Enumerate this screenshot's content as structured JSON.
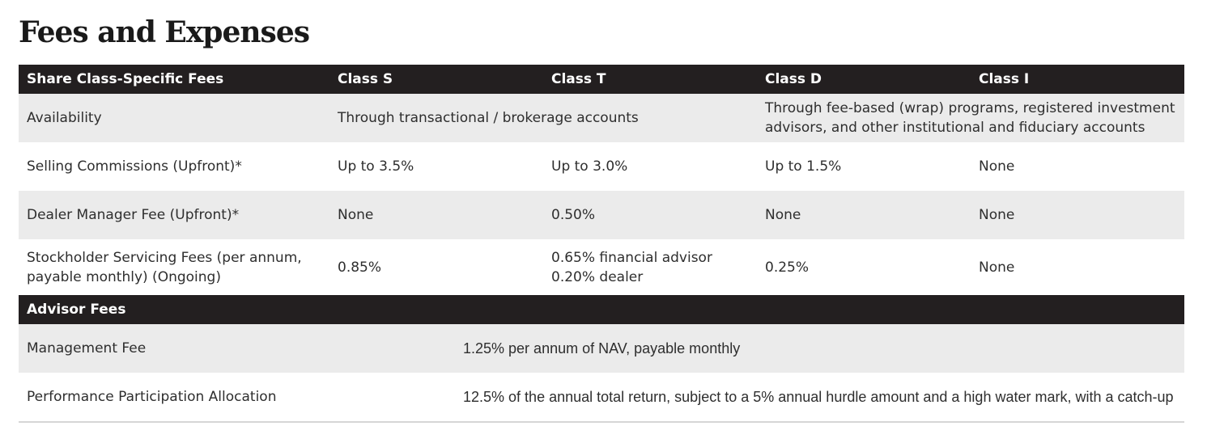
{
  "title": "Fees and Expenses",
  "share_class_table": {
    "headers": [
      "Share Class-Specific Fees",
      "Class S",
      "Class T",
      "Class D",
      "Class I"
    ],
    "availability": {
      "label": "Availability",
      "s_t": "Through transactional / brokerage accounts",
      "d_i": "Through fee-based (wrap) programs, registered investment advisors, and other institutional and fiduciary accounts"
    },
    "rows": [
      {
        "label": "Selling Commissions (Upfront)*",
        "values": [
          "Up to 3.5%",
          "Up to 3.0%",
          "Up to 1.5%",
          "None"
        ]
      },
      {
        "label": "Dealer Manager Fee (Upfront)*",
        "values": [
          "None",
          "0.50%",
          "None",
          "None"
        ]
      },
      {
        "label": "Stockholder Servicing Fees (per annum, payable monthly) (Ongoing)",
        "values": [
          "0.85%",
          "0.65% financial advisor 0.20% dealer",
          "0.25%",
          "None"
        ]
      }
    ]
  },
  "advisor_table": {
    "header": "Advisor Fees",
    "rows": [
      {
        "label": "Management Fee",
        "value": "1.25% per annum of NAV, payable monthly"
      },
      {
        "label": "Performance Participation Allocation",
        "value": "12.5% of the annual total return, subject to a 5% annual hurdle amount and a high water mark, with a catch-up"
      }
    ]
  },
  "colors": {
    "header_bg": "#231f20",
    "shaded_row_bg": "#ebebeb",
    "divider": "#d6d6d6"
  }
}
